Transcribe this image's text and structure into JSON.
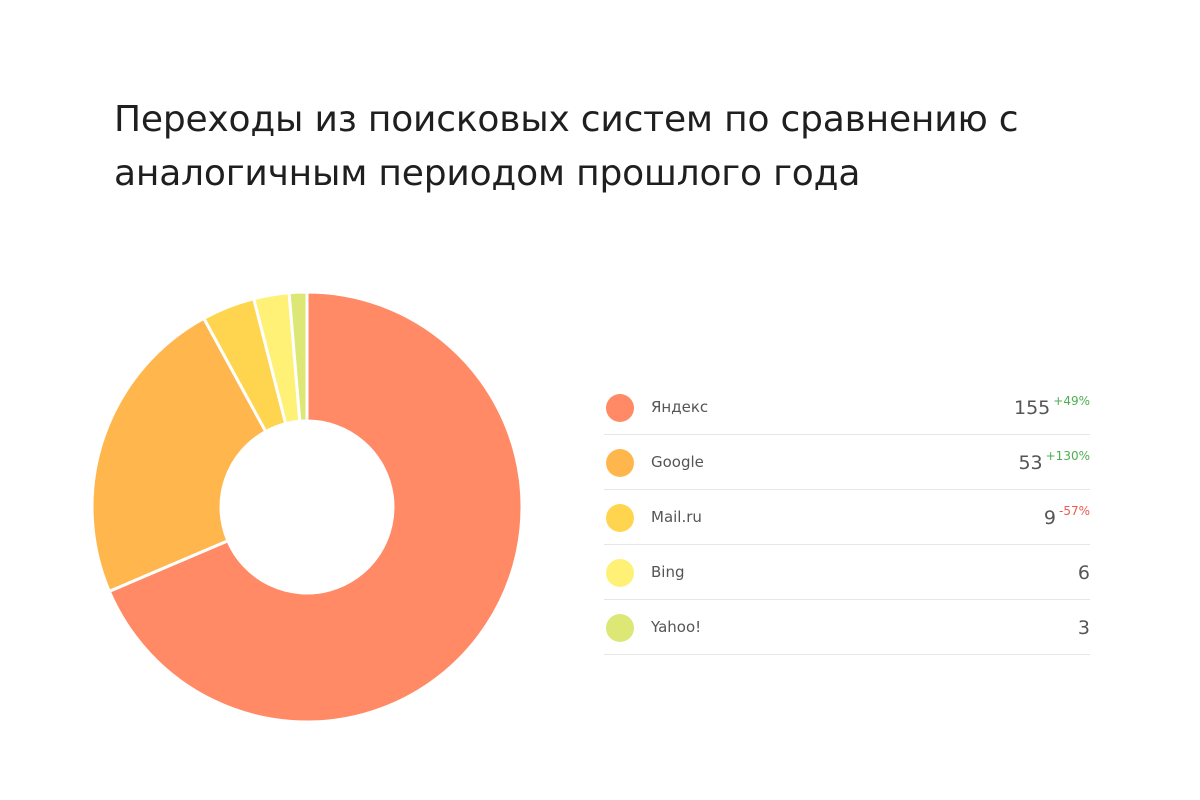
{
  "chart_data": {
    "type": "pie",
    "title": "Переходы из поисковых систем по сравнению с аналогичным периодом прошлого года",
    "hole": 0.4,
    "legend_position": "right",
    "series": [
      {
        "name": "Яндекс",
        "value": 155,
        "change": "+49%",
        "trend": "up",
        "color": "#ff8a65"
      },
      {
        "name": "Google",
        "value": 53,
        "change": "+130%",
        "trend": "up",
        "color": "#ffb74d"
      },
      {
        "name": "Mail.ru",
        "value": 9,
        "change": "-57%",
        "trend": "down",
        "color": "#ffd54f"
      },
      {
        "name": "Bing",
        "value": 6,
        "change": "",
        "trend": "",
        "color": "#fff176"
      },
      {
        "name": "Yahoo!",
        "value": 3,
        "change": "",
        "trend": "",
        "color": "#dce775"
      }
    ]
  }
}
